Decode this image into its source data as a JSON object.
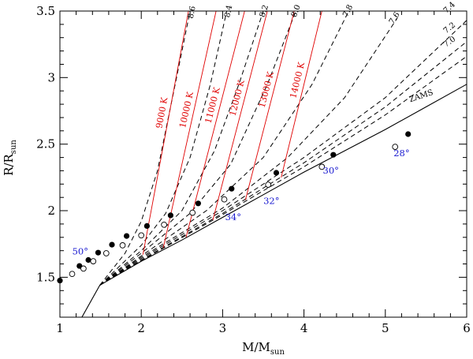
{
  "chart_data": {
    "type": "line",
    "xlabel": "M/M",
    "xlabel_sub": "sun",
    "ylabel": "R/R",
    "ylabel_sub": "sun",
    "xlim": [
      1,
      6
    ],
    "ylim": [
      1.2,
      3.5
    ],
    "x_ticks": [
      "1",
      "2",
      "3",
      "4",
      "5",
      "6"
    ],
    "y_ticks": [
      "1.5",
      "2",
      "2.5",
      "3",
      "3.5"
    ],
    "zams": {
      "label": "ZAMS",
      "x": [
        1.27,
        1.49,
        2.0,
        2.5,
        3.0,
        3.5,
        4.0,
        4.5,
        5.0,
        5.5,
        6.0
      ],
      "y": [
        1.2,
        1.44,
        1.62,
        1.78,
        1.95,
        2.12,
        2.29,
        2.45,
        2.61,
        2.78,
        2.95
      ]
    },
    "isochrones": [
      {
        "label": "8.6",
        "x": [
          1.49,
          1.8,
          2.0,
          2.2,
          2.4,
          2.6
        ],
        "y": [
          1.44,
          1.68,
          1.92,
          2.3,
          2.9,
          3.5
        ]
      },
      {
        "label": "8.4",
        "x": [
          1.49,
          2.0,
          2.3,
          2.6,
          2.85,
          3.05
        ],
        "y": [
          1.44,
          1.74,
          1.98,
          2.4,
          2.95,
          3.5
        ]
      },
      {
        "label": "8.2",
        "x": [
          1.49,
          2.0,
          2.5,
          2.9,
          3.2,
          3.5
        ],
        "y": [
          1.44,
          1.7,
          2.0,
          2.45,
          2.95,
          3.5
        ]
      },
      {
        "label": "8.0",
        "x": [
          1.49,
          2.0,
          2.6,
          3.1,
          3.55,
          3.9
        ],
        "y": [
          1.44,
          1.68,
          1.98,
          2.35,
          2.95,
          3.5
        ]
      },
      {
        "label": "7.8",
        "x": [
          1.49,
          2.0,
          2.8,
          3.5,
          4.1,
          4.55
        ],
        "y": [
          1.44,
          1.66,
          2.0,
          2.4,
          2.95,
          3.5
        ]
      },
      {
        "label": "7.6",
        "x": [
          1.49,
          2.0,
          3.0,
          3.8,
          4.5,
          5.15
        ],
        "y": [
          1.44,
          1.65,
          2.02,
          2.4,
          2.85,
          3.45
        ]
      },
      {
        "label": "7.4",
        "x": [
          1.49,
          2.0,
          3.0,
          4.0,
          5.0,
          6.0
        ],
        "y": [
          1.44,
          1.64,
          2.0,
          2.4,
          2.85,
          3.43
        ]
      },
      {
        "label": "7.2",
        "x": [
          1.49,
          2.0,
          3.0,
          4.0,
          5.0,
          6.0
        ],
        "y": [
          1.44,
          1.63,
          1.98,
          2.36,
          2.78,
          3.27
        ]
      },
      {
        "label": "7.0",
        "x": [
          1.49,
          2.0,
          3.0,
          4.0,
          5.0,
          6.0
        ],
        "y": [
          1.44,
          1.625,
          1.97,
          2.33,
          2.72,
          3.16
        ]
      }
    ],
    "isotherms": [
      {
        "label": "9000 K",
        "x": [
          2.02,
          2.58
        ],
        "y": [
          1.67,
          3.5
        ]
      },
      {
        "label": "10000 K",
        "x": [
          2.27,
          2.92
        ],
        "y": [
          1.72,
          3.5
        ]
      },
      {
        "label": "11000 K",
        "x": [
          2.55,
          3.27
        ],
        "y": [
          1.8,
          3.5
        ]
      },
      {
        "label": "12000 K",
        "x": [
          2.88,
          3.55
        ],
        "y": [
          1.93,
          3.5
        ]
      },
      {
        "label": "13000 K",
        "x": [
          3.28,
          3.88
        ],
        "y": [
          2.08,
          3.5
        ]
      },
      {
        "label": "14000 K",
        "x": [
          3.72,
          4.22
        ],
        "y": [
          2.25,
          3.5
        ]
      }
    ],
    "filled_points": {
      "x": [
        1.0,
        1.24,
        1.35,
        1.47,
        1.64,
        1.82,
        2.07,
        2.36,
        2.7,
        3.11,
        3.66,
        4.36,
        5.28
      ],
      "y": [
        1.475,
        1.585,
        1.63,
        1.685,
        1.745,
        1.81,
        1.885,
        1.965,
        2.055,
        2.165,
        2.285,
        2.42,
        2.575
      ]
    },
    "open_points": {
      "x": [
        1.15,
        1.29,
        1.41,
        1.57,
        1.77,
        2.0,
        2.28,
        2.63,
        3.02,
        3.56,
        4.22,
        5.12
      ],
      "y": [
        1.525,
        1.565,
        1.62,
        1.68,
        1.74,
        1.815,
        1.895,
        1.985,
        2.085,
        2.195,
        2.33,
        2.48
      ]
    },
    "angle_labels": [
      {
        "label": "50°",
        "x": 1.25,
        "y": 1.67
      },
      {
        "label": "34°",
        "x": 3.13,
        "y": 1.93
      },
      {
        "label": "32°",
        "x": 3.6,
        "y": 2.05
      },
      {
        "label": "30°",
        "x": 4.33,
        "y": 2.28
      },
      {
        "label": "28°",
        "x": 5.2,
        "y": 2.41
      }
    ],
    "grid": false,
    "colors": {
      "isochrone": "#000000",
      "isotherm": "#e00000",
      "angle": "#1a1ad0"
    }
  }
}
